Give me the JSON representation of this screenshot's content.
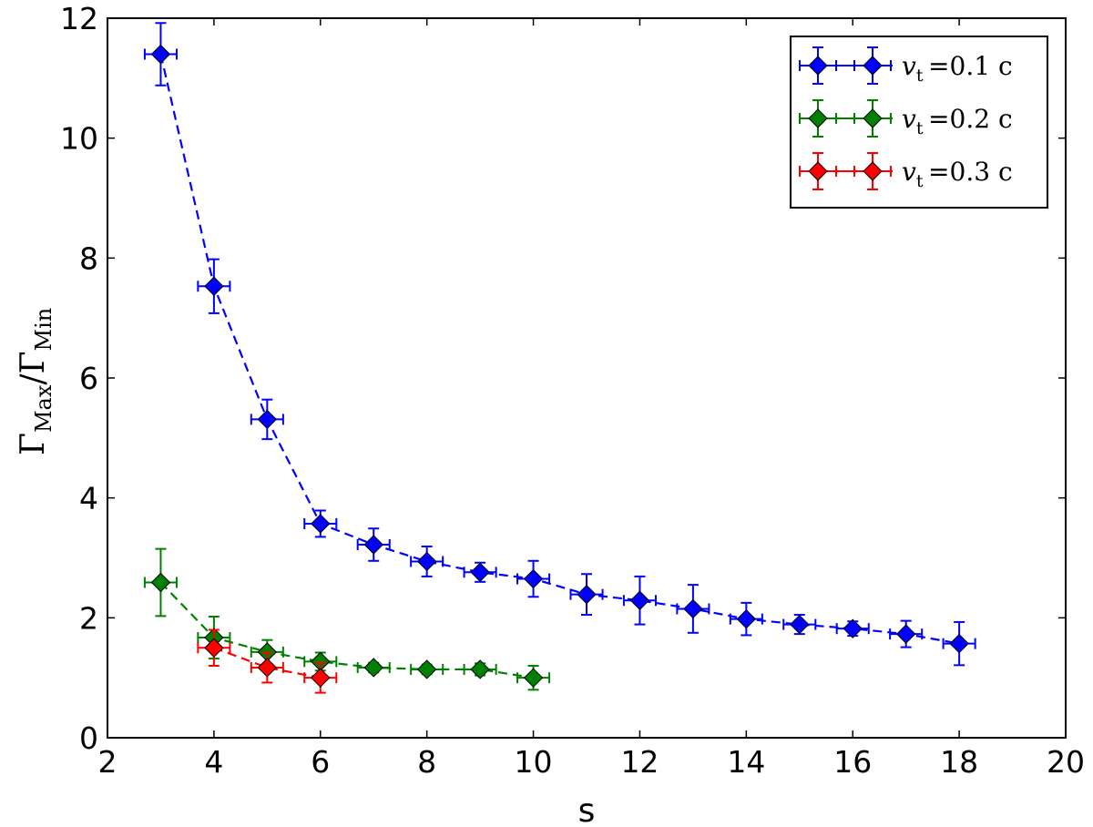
{
  "chart_data": {
    "type": "scatter",
    "xlabel": "s",
    "ylabel": {
      "base": "Γ",
      "num_sub": "Max",
      "den_sub": "Min",
      "slash": "/"
    },
    "xlim": [
      2,
      20
    ],
    "ylim": [
      0,
      12
    ],
    "x_ticks": [
      "2",
      "4",
      "6",
      "8",
      "10",
      "12",
      "14",
      "16",
      "18",
      "20"
    ],
    "y_ticks": [
      "0",
      "2",
      "4",
      "6",
      "8",
      "10",
      "12"
    ],
    "grid": false,
    "legend_position": "top-right",
    "series": [
      {
        "name": "v_t = 0.1 c",
        "label_var": "v",
        "label_sub": "t",
        "label_eq": "=",
        "label_val": "0.1 c",
        "color": "#0000ff",
        "x": [
          3,
          4,
          5,
          6,
          7,
          8,
          9,
          10,
          11,
          12,
          13,
          14,
          15,
          16,
          17,
          18
        ],
        "y": [
          11.4,
          7.53,
          5.31,
          3.57,
          3.22,
          2.94,
          2.76,
          2.65,
          2.39,
          2.29,
          2.15,
          1.98,
          1.89,
          1.82,
          1.73,
          1.57
        ],
        "yerr": [
          0.52,
          0.45,
          0.33,
          0.22,
          0.27,
          0.25,
          0.16,
          0.3,
          0.34,
          0.4,
          0.4,
          0.27,
          0.16,
          0.12,
          0.22,
          0.36
        ],
        "xerr": [
          0.3,
          0.3,
          0.3,
          0.3,
          0.3,
          0.3,
          0.3,
          0.3,
          0.3,
          0.3,
          0.3,
          0.3,
          0.3,
          0.3,
          0.3,
          0.3
        ]
      },
      {
        "name": "v_t = 0.2 c",
        "label_var": "v",
        "label_sub": "t",
        "label_eq": "=",
        "label_val": "0.2 c",
        "color": "#008000",
        "x": [
          3,
          4,
          5,
          6,
          7,
          8,
          9,
          10
        ],
        "y": [
          2.59,
          1.67,
          1.43,
          1.27,
          1.17,
          1.14,
          1.14,
          1.0
        ],
        "yerr": [
          0.56,
          0.35,
          0.2,
          0.15,
          0.08,
          0.08,
          0.1,
          0.2
        ],
        "xerr": [
          0.3,
          0.3,
          0.3,
          0.3,
          0.3,
          0.3,
          0.3,
          0.3
        ]
      },
      {
        "name": "v_t = 0.3 c",
        "label_var": "v",
        "label_sub": "t",
        "label_eq": "=",
        "label_val": "0.3 c",
        "color": "#ff0000",
        "x": [
          4,
          5,
          6
        ],
        "y": [
          1.5,
          1.17,
          1.0
        ],
        "yerr": [
          0.3,
          0.25,
          0.25
        ],
        "xerr": [
          0.3,
          0.3,
          0.3
        ]
      }
    ]
  }
}
